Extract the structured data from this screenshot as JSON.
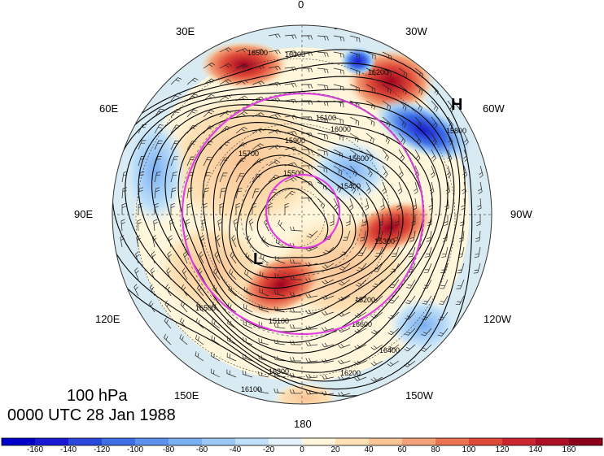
{
  "map": {
    "projection": "north-polar-stereographic",
    "longitude_labels": {
      "top": "0",
      "top_right": "30W",
      "right_upper": "60W",
      "right": "90W",
      "right_lower": "120W",
      "bottom_right": "150W",
      "bottom": "180",
      "bottom_left": "150E",
      "left_lower": "120E",
      "left": "90E",
      "left_upper": "60E",
      "top_left": "30E"
    },
    "contour_labels": [
      "16400",
      "16500",
      "16300",
      "16200",
      "16100",
      "16000",
      "15900",
      "15800",
      "15700",
      "15600",
      "15500",
      "15400",
      "15300",
      "15200",
      "15100",
      "16600"
    ],
    "pressure_systems": [
      {
        "symbol": "H",
        "location": "60W"
      },
      {
        "symbol": "L",
        "location": "110E"
      }
    ],
    "colors": {
      "contour": "#000000",
      "jet_circle": "#e040e0",
      "positive_max": "#a0001e",
      "negative_max": "#1a1ad0"
    }
  },
  "title": {
    "level": "100 hPa",
    "time": "0000 UTC 28 Jan 1988"
  },
  "colorbar": {
    "tick_labels": [
      "-160",
      "-140",
      "-120",
      "-100",
      "-80",
      "-60",
      "-40",
      "-20",
      "0",
      "20",
      "40",
      "60",
      "80",
      "100",
      "120",
      "140",
      "160"
    ],
    "colors": [
      "#0000c8",
      "#1a1ad4",
      "#2a48dc",
      "#3d6ee6",
      "#5a92ee",
      "#7aaff2",
      "#9bc8f5",
      "#bfe0f8",
      "#e4f3fb",
      "#fff6dc",
      "#fde1b4",
      "#f9c496",
      "#f3a177",
      "#ea7452",
      "#de4a38",
      "#cb2630",
      "#ad0f26",
      "#8c001c"
    ]
  }
}
